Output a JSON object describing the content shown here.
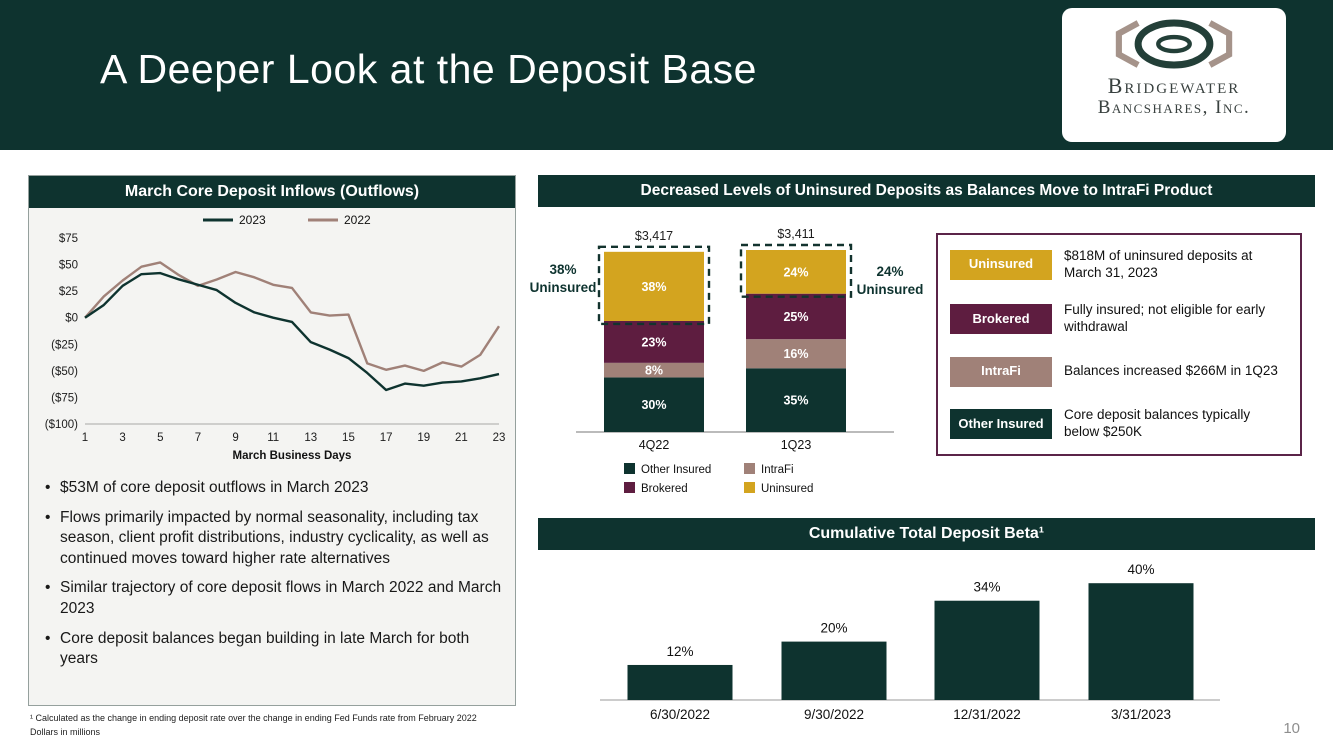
{
  "slide": {
    "title": "A Deeper Look at the Deposit Base",
    "page_number": "10"
  },
  "logo": {
    "name1": "Bridgewater",
    "name2": "Bancshares, Inc."
  },
  "colors": {
    "teal": "#0e332f",
    "taupe": "#a08178",
    "maroon": "#5e1d40",
    "gold": "#d3a41f",
    "defs_border": "#5b2448"
  },
  "left_panel": {
    "header": "March Core Deposit Inflows (Outflows)",
    "bullets": [
      "$53M of core deposit outflows in March 2023",
      "Flows primarily impacted by normal seasonality, including tax season, client profit distributions, industry cyclicality, as well as continued moves toward higher rate alternatives",
      "Similar trajectory of core deposit flows in March 2022 and March 2023",
      "Core deposit balances began building in late March for both years"
    ]
  },
  "footnotes": {
    "line1": "¹ Calculated as the change in ending deposit rate over the change in ending Fed Funds rate from February 2022",
    "line2": "Dollars in millions"
  },
  "uninsured_panel": {
    "header": "Decreased Levels of Uninsured Deposits as Balances Move to IntraFi Product",
    "left_callout": {
      "line1": "38%",
      "line2": "Uninsured"
    },
    "right_callout": {
      "line1": "24%",
      "line2": "Uninsured"
    },
    "definitions": [
      {
        "label": "Uninsured",
        "color": "#d3a41f",
        "text": "$818M of uninsured deposits at March 31, 2023"
      },
      {
        "label": "Brokered",
        "color": "#5e1d40",
        "text": "Fully insured; not eligible for early withdrawal"
      },
      {
        "label": "IntraFi",
        "color": "#a08178",
        "text": "Balances increased $266M in 1Q23"
      },
      {
        "label": "Other Insured",
        "color": "#0e332f",
        "text": "Core deposit balances typically below $250K"
      }
    ]
  },
  "beta_panel": {
    "header": "Cumulative Total Deposit Beta¹"
  },
  "chart_data": [
    {
      "id": "march-flows",
      "type": "line",
      "title": "March Core Deposit Inflows (Outflows)",
      "xlabel": "March Business Days",
      "ylabel": "",
      "x": [
        1,
        2,
        3,
        4,
        5,
        6,
        7,
        8,
        9,
        10,
        11,
        12,
        13,
        14,
        15,
        16,
        17,
        18,
        19,
        20,
        21,
        22,
        23
      ],
      "xticks": [
        1,
        3,
        5,
        7,
        9,
        11,
        13,
        15,
        17,
        19,
        21,
        23
      ],
      "ylim": [
        -100,
        75
      ],
      "yticks": [
        {
          "v": 75,
          "label": "$75"
        },
        {
          "v": 50,
          "label": "$50"
        },
        {
          "v": 25,
          "label": "$25"
        },
        {
          "v": 0,
          "label": "$0"
        },
        {
          "v": -25,
          "label": "($25)"
        },
        {
          "v": -50,
          "label": "($50)"
        },
        {
          "v": -75,
          "label": "($75)"
        },
        {
          "v": -100,
          "label": "($100)"
        }
      ],
      "grid": false,
      "legend_position": "top",
      "series": [
        {
          "name": "2023",
          "color": "#0e332f",
          "values": [
            0,
            12,
            30,
            41,
            42,
            36,
            31,
            26,
            14,
            5,
            0,
            -4,
            -23,
            -30,
            -38,
            -52,
            -68,
            -62,
            -64,
            -61,
            -60,
            -57,
            -53
          ]
        },
        {
          "name": "2022",
          "color": "#a08178",
          "values": [
            0,
            20,
            35,
            48,
            52,
            40,
            30,
            36,
            43,
            38,
            31,
            28,
            5,
            2,
            3,
            -43,
            -49,
            -45,
            -50,
            -42,
            -46,
            -35,
            -8
          ]
        }
      ]
    },
    {
      "id": "uninsured-mix",
      "type": "stacked_bar",
      "title": "Decreased Levels of Uninsured Deposits as Balances Move to IntraFi Product",
      "categories": [
        "4Q22",
        "1Q23"
      ],
      "totals": [
        "$3,417",
        "$3,411"
      ],
      "unit": "percent of total deposits",
      "series": [
        {
          "name": "Other Insured",
          "color": "#0e332f",
          "values": [
            30,
            35
          ]
        },
        {
          "name": "IntraFi",
          "color": "#a08178",
          "values": [
            8,
            16
          ]
        },
        {
          "name": "Brokered",
          "color": "#5e1d40",
          "values": [
            23,
            25
          ]
        },
        {
          "name": "Uninsured",
          "color": "#d3a41f",
          "values": [
            38,
            24
          ],
          "highlight": true
        }
      ],
      "legend_order": [
        "Other Insured",
        "IntraFi",
        "Brokered",
        "Uninsured"
      ],
      "legend_position": "bottom"
    },
    {
      "id": "deposit-beta",
      "type": "bar",
      "title": "Cumulative Total Deposit Beta¹",
      "categories": [
        "6/30/2022",
        "9/30/2022",
        "12/31/2022",
        "3/31/2023"
      ],
      "values": [
        12,
        20,
        34,
        40
      ],
      "labels": [
        "12%",
        "20%",
        "34%",
        "40%"
      ],
      "bar_color": "#0e332f",
      "ylim": [
        0,
        45
      ],
      "grid": false
    }
  ]
}
